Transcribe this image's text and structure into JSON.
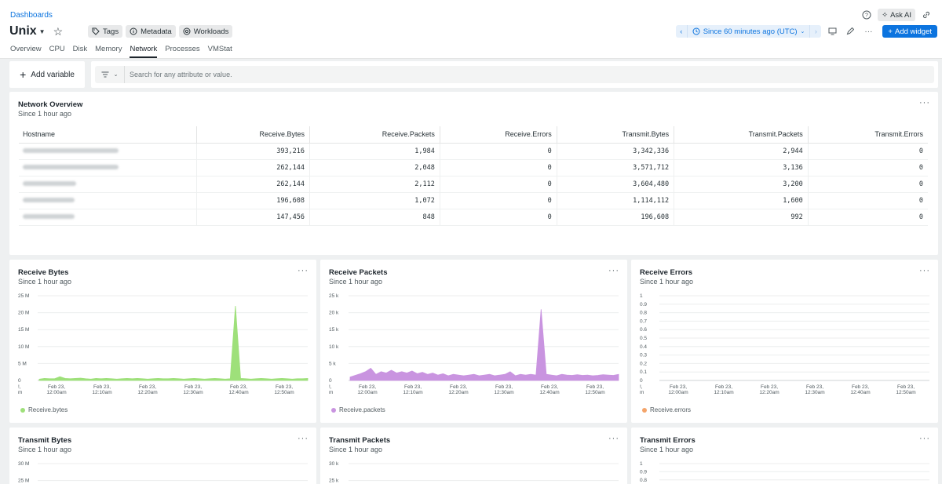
{
  "breadcrumb": "Dashboards",
  "page_title": "Unix",
  "pills": [
    {
      "label": "Tags",
      "icon": "tag-icon"
    },
    {
      "label": "Metadata",
      "icon": "info-icon"
    },
    {
      "label": "Workloads",
      "icon": "workloads-icon"
    }
  ],
  "tabs": [
    "Overview",
    "CPU",
    "Disk",
    "Memory",
    "Network",
    "Processes",
    "VMStat"
  ],
  "active_tab": "Network",
  "top_right": {
    "ask_ai": "Ask AI"
  },
  "time_picker": {
    "label": "Since 60 minutes ago (UTC)"
  },
  "add_widget": "Add widget",
  "add_variable": "Add variable",
  "search": {
    "placeholder": "Search for any attribute or value."
  },
  "colors": {
    "accent": "#0c74df",
    "green": "#9ee07a",
    "purple": "#c994e0",
    "orange": "#f4a46a"
  },
  "overview": {
    "title": "Network Overview",
    "subtitle": "Since 1 hour ago",
    "columns": [
      "Hostname",
      "Receive.Bytes",
      "Receive.Packets",
      "Receive.Errors",
      "Transmit.Bytes",
      "Transmit.Packets",
      "Transmit.Errors"
    ],
    "rows": [
      [
        "",
        "393,216",
        "1,984",
        "0",
        "3,342,336",
        "2,944",
        "0"
      ],
      [
        "",
        "262,144",
        "2,048",
        "0",
        "3,571,712",
        "3,136",
        "0"
      ],
      [
        "",
        "262,144",
        "2,112",
        "0",
        "3,604,480",
        "3,200",
        "0"
      ],
      [
        "",
        "196,608",
        "1,072",
        "0",
        "1,114,112",
        "1,600",
        "0"
      ],
      [
        "",
        "147,456",
        "848",
        "0",
        "196,608",
        "992",
        "0"
      ]
    ]
  },
  "x_ticks": [
    "Feb 23,\n12:00am",
    "Feb 23,\n12:10am",
    "Feb 23,\n12:20am",
    "Feb 23,\n12:30am",
    "Feb 23,\n12:40am",
    "Feb 23,\n12:50am"
  ],
  "chart_data": [
    {
      "type": "area",
      "title": "Receive Bytes",
      "subtitle": "Since 1 hour ago",
      "ylim": [
        0,
        25000000
      ],
      "y_ticks": [
        "25 M",
        "20 M",
        "15 M",
        "10 M",
        "5 M",
        "0"
      ],
      "series": [
        {
          "name": "Receive.bytes",
          "color": "#9ee07a",
          "values": [
            0.4,
            0.6,
            0.5,
            0.5,
            1.1,
            0.6,
            0.5,
            0.6,
            0.7,
            0.5,
            0.4,
            0.6,
            0.5,
            0.6,
            0.5,
            0.4,
            0.5,
            0.6,
            0.5,
            0.6,
            0.5,
            0.4,
            0.5,
            0.6,
            0.5,
            0.5,
            0.6,
            0.5,
            0.4,
            0.5,
            0.6,
            0.5,
            0.4,
            0.5,
            0.6,
            0.5,
            0.4,
            0.5,
            22.0,
            0.6,
            0.5,
            0.4,
            0.5,
            0.6,
            0.5,
            0.4,
            0.5,
            0.6,
            0.5,
            0.4,
            0.5,
            0.5,
            0.6
          ]
        }
      ]
    },
    {
      "type": "area",
      "title": "Receive Packets",
      "subtitle": "Since 1 hour ago",
      "ylim": [
        0,
        25000
      ],
      "y_ticks": [
        "25 k",
        "20 k",
        "15 k",
        "10 k",
        "5 k",
        "0"
      ],
      "series": [
        {
          "name": "Receive.packets",
          "color": "#c994e0",
          "values": [
            1.0,
            1.5,
            2.0,
            2.6,
            3.6,
            1.8,
            2.6,
            2.2,
            3.0,
            2.2,
            2.6,
            2.2,
            2.8,
            2.0,
            2.4,
            1.8,
            2.2,
            1.6,
            2.0,
            1.4,
            1.8,
            1.6,
            1.4,
            1.6,
            1.8,
            1.4,
            1.6,
            1.8,
            1.4,
            1.6,
            1.8,
            2.6,
            1.4,
            1.8,
            1.6,
            1.8,
            1.6,
            21.0,
            1.8,
            1.6,
            1.4,
            1.8,
            1.6,
            1.5,
            1.7,
            1.5,
            1.6,
            1.4,
            1.5,
            1.7,
            1.6,
            1.5,
            1.8
          ]
        }
      ]
    },
    {
      "type": "line",
      "title": "Receive Errors",
      "subtitle": "Since 1 hour ago",
      "ylim": [
        0,
        1
      ],
      "y_ticks": [
        "1",
        "0.9",
        "0.8",
        "0.7",
        "0.6",
        "0.5",
        "0.4",
        "0.3",
        "0.2",
        "0.1",
        "0"
      ],
      "series": [
        {
          "name": "Receive.errors",
          "color": "#f4a46a",
          "values": []
        }
      ]
    },
    {
      "type": "area",
      "title": "Transmit Bytes",
      "subtitle": "Since 1 hour ago",
      "ylim": [
        0,
        30000000
      ],
      "y_ticks": [
        "30 M",
        "25 M"
      ],
      "series": []
    },
    {
      "type": "area",
      "title": "Transmit Packets",
      "subtitle": "Since 1 hour ago",
      "ylim": [
        0,
        30000
      ],
      "y_ticks": [
        "30 k",
        "25 k"
      ],
      "series": []
    },
    {
      "type": "line",
      "title": "Transmit Errors",
      "subtitle": "Since 1 hour ago",
      "ylim": [
        0,
        1
      ],
      "y_ticks": [
        "1",
        "0.9",
        "0.8"
      ],
      "series": []
    }
  ]
}
